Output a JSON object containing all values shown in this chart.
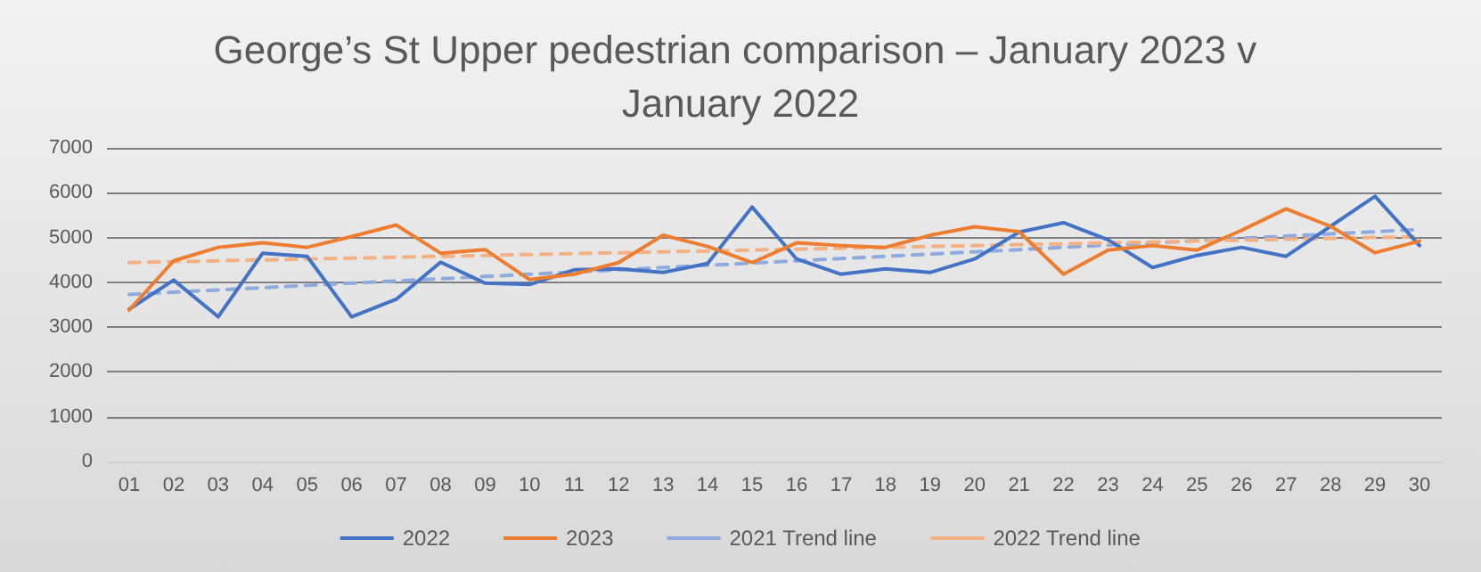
{
  "chart_data": {
    "type": "line",
    "title": "George’s St Upper pedestrian comparison – January 2023 v January 2022",
    "categories": [
      "01",
      "02",
      "03",
      "04",
      "05",
      "06",
      "07",
      "08",
      "09",
      "10",
      "11",
      "12",
      "13",
      "14",
      "15",
      "16",
      "17",
      "18",
      "19",
      "20",
      "21",
      "22",
      "23",
      "24",
      "25",
      "26",
      "27",
      "28",
      "29",
      "30"
    ],
    "series": [
      {
        "name": "2022",
        "color": "#4472c4",
        "line_style": "solid",
        "values": [
          3400,
          4050,
          3230,
          4650,
          4580,
          3230,
          3620,
          4450,
          3980,
          3950,
          4280,
          4300,
          4220,
          4420,
          5680,
          4520,
          4180,
          4300,
          4220,
          4520,
          5120,
          5330,
          4950,
          4330,
          4600,
          4780,
          4580,
          5250,
          5920,
          4820
        ]
      },
      {
        "name": "2023",
        "color": "#ed7d31",
        "line_style": "solid",
        "values": [
          3380,
          4480,
          4780,
          4880,
          4780,
          5020,
          5280,
          4650,
          4730,
          4060,
          4180,
          4440,
          5050,
          4800,
          4440,
          4880,
          4820,
          4780,
          5050,
          5240,
          5130,
          4180,
          4720,
          4820,
          4720,
          5160,
          5640,
          5250,
          4660,
          4920
        ]
      },
      {
        "name": "2021 Trend line",
        "color": "#8faadc",
        "line_style": "dashed",
        "values": [
          3730,
          3780,
          3830,
          3880,
          3930,
          3980,
          4030,
          4080,
          4130,
          4180,
          4230,
          4280,
          4330,
          4380,
          4430,
          4480,
          4530,
          4580,
          4630,
          4680,
          4730,
          4780,
          4830,
          4880,
          4930,
          4980,
          5030,
          5080,
          5130,
          5180
        ]
      },
      {
        "name": "2022 Trend line",
        "color": "#f4b183",
        "line_style": "dashed",
        "values": [
          4440,
          4460,
          4480,
          4500,
          4520,
          4540,
          4560,
          4580,
          4600,
          4620,
          4640,
          4660,
          4680,
          4700,
          4720,
          4740,
          4760,
          4780,
          4800,
          4820,
          4840,
          4860,
          4880,
          4900,
          4920,
          4940,
          4960,
          4980,
          5000,
          5020
        ]
      }
    ],
    "ylim": [
      0,
      7000
    ],
    "yticks": [
      0,
      1000,
      2000,
      3000,
      4000,
      5000,
      6000,
      7000
    ],
    "grid": "y",
    "legend": "bottom",
    "marker": "none"
  }
}
